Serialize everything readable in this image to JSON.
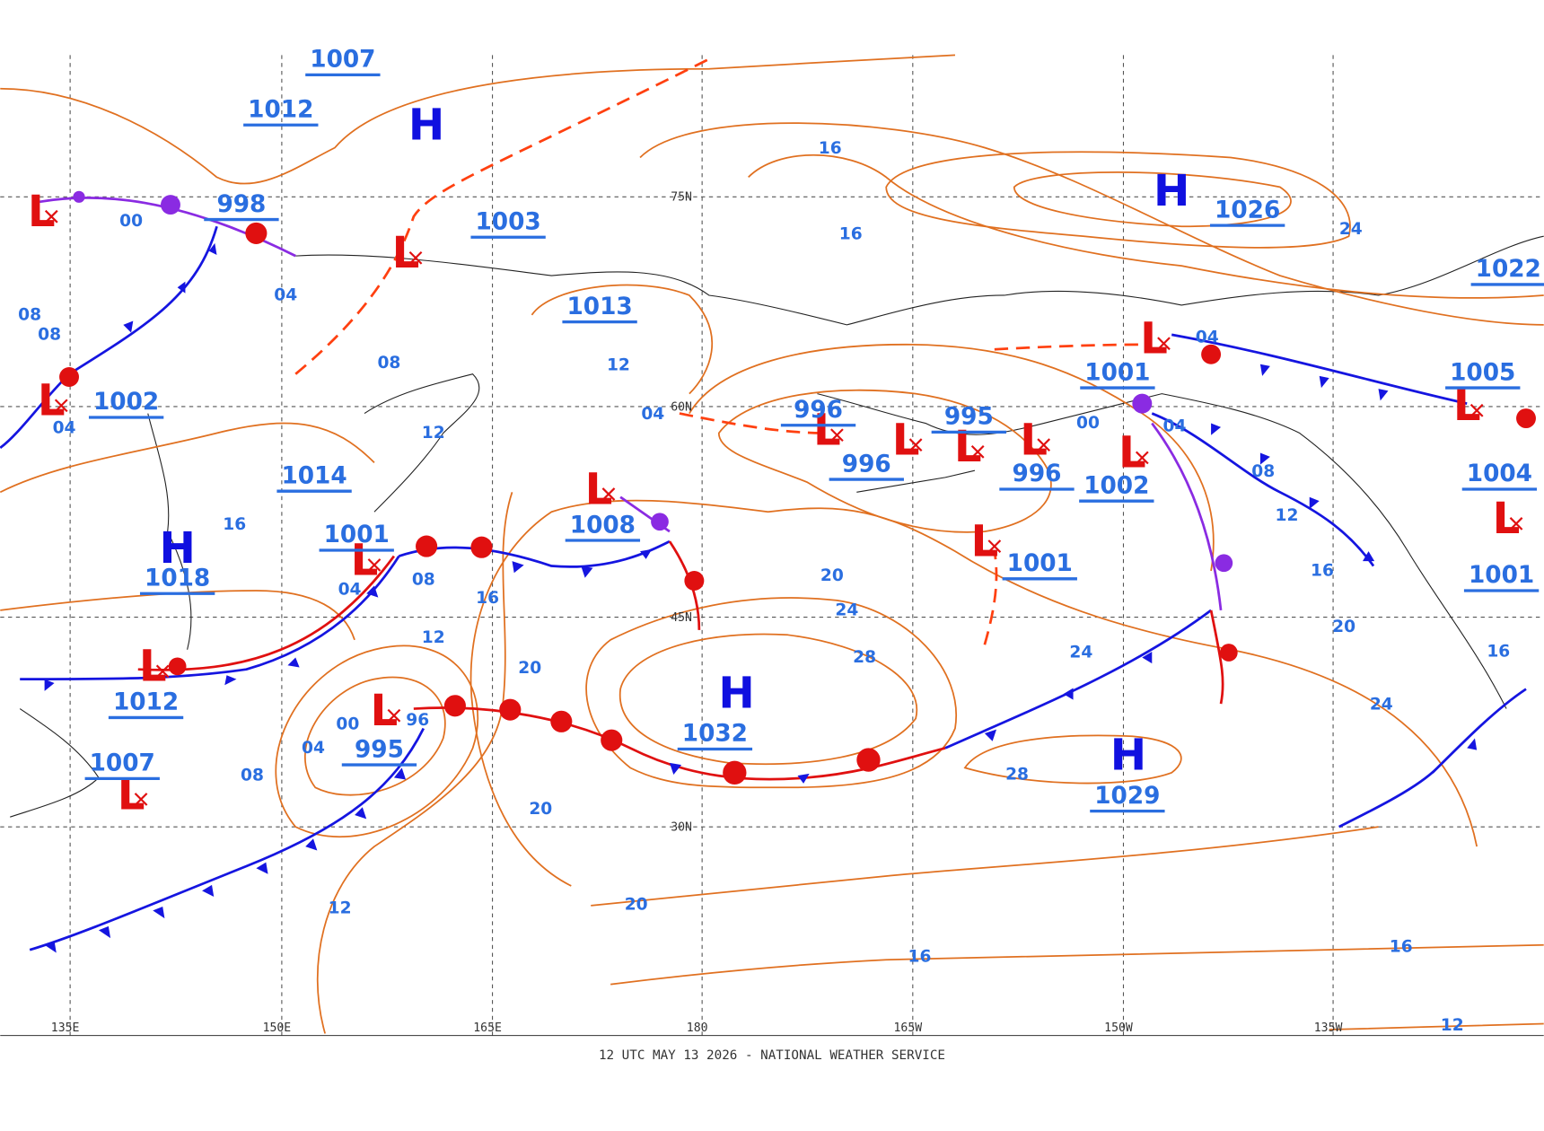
{
  "map": {
    "footer": "12 UTC MAY 13 2026 - NATIONAL WEATHER SERVICE",
    "longitude_labels": [
      "135E",
      "150E",
      "165E",
      "180",
      "165W",
      "150W",
      "135W"
    ],
    "latitude_labels": [
      "75N",
      "60N",
      "45N",
      "30N"
    ],
    "symbols": [
      "H",
      "H",
      "H",
      "H",
      "H",
      "L",
      "L",
      "L",
      "L",
      "L",
      "L",
      "L",
      "L",
      "L",
      "L",
      "L",
      "L",
      "L",
      "L",
      "L",
      "L",
      "L"
    ],
    "pressure_labels": [
      "1007",
      "1012",
      "998",
      "1003",
      "1013",
      "1002",
      "1014",
      "1001",
      "1018",
      "1008",
      "996",
      "996",
      "995",
      "996",
      "1002",
      "1001",
      "1026",
      "1022",
      "1005",
      "1004",
      "1001",
      "1001",
      "1032",
      "1029",
      "1012",
      "1007",
      "995"
    ],
    "isobar_labels": [
      "16",
      "16",
      "24",
      "04",
      "08",
      "00",
      "08",
      "08",
      "12",
      "04",
      "12",
      "16",
      "08",
      "04",
      "16",
      "12",
      "20",
      "20",
      "24",
      "28",
      "24",
      "00",
      "96",
      "04",
      "08",
      "20",
      "28",
      "20",
      "12",
      "16",
      "16",
      "12",
      "08",
      "12",
      "16",
      "20",
      "24",
      "16",
      "04",
      "04",
      "00",
      "04"
    ]
  }
}
